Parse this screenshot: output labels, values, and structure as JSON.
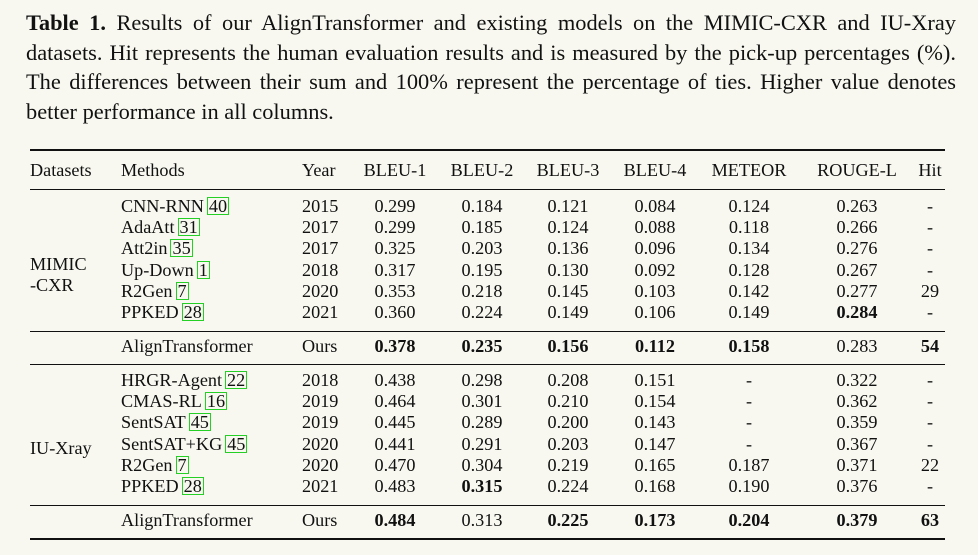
{
  "caption": {
    "label": "Table 1.",
    "text": "Results of our AlignTransformer and existing models on the MIMIC-CXR and IU-Xray datasets. Hit represents the human evaluation results and is measured by the pick-up percentages (%). The differences between their sum and 100% represent the percentage of ties. Higher value denotes better performance in all columns."
  },
  "headers": [
    "Datasets",
    "Methods",
    "Year",
    "BLEU-1",
    "BLEU-2",
    "BLEU-3",
    "BLEU-4",
    "METEOR",
    "ROUGE-L",
    "Hit"
  ],
  "groups": [
    {
      "dataset": [
        "MIMIC",
        "-CXR"
      ],
      "rows": [
        {
          "method": "CNN-RNN",
          "ref": "40",
          "year": "2015",
          "vals": [
            "0.299",
            "0.184",
            "0.121",
            "0.084",
            "0.124",
            "0.263",
            "-"
          ],
          "bold": []
        },
        {
          "method": "AdaAtt",
          "ref": "31",
          "year": "2017",
          "vals": [
            "0.299",
            "0.185",
            "0.124",
            "0.088",
            "0.118",
            "0.266",
            "-"
          ],
          "bold": []
        },
        {
          "method": "Att2in",
          "ref": "35",
          "year": "2017",
          "vals": [
            "0.325",
            "0.203",
            "0.136",
            "0.096",
            "0.134",
            "0.276",
            "-"
          ],
          "bold": []
        },
        {
          "method": "Up-Down",
          "ref": "1",
          "year": "2018",
          "vals": [
            "0.317",
            "0.195",
            "0.130",
            "0.092",
            "0.128",
            "0.267",
            "-"
          ],
          "bold": []
        },
        {
          "method": "R2Gen",
          "ref": "7",
          "year": "2020",
          "vals": [
            "0.353",
            "0.218",
            "0.145",
            "0.103",
            "0.142",
            "0.277",
            "29"
          ],
          "bold": []
        },
        {
          "method": "PPKED",
          "ref": "28",
          "year": "2021",
          "vals": [
            "0.360",
            "0.224",
            "0.149",
            "0.106",
            "0.149",
            "0.284",
            "-"
          ],
          "bold": [
            5
          ]
        }
      ],
      "ours": {
        "method": "AlignTransformer",
        "year": "Ours",
        "vals": [
          "0.378",
          "0.235",
          "0.156",
          "0.112",
          "0.158",
          "0.283",
          "54"
        ],
        "bold": [
          0,
          1,
          2,
          3,
          4,
          6
        ]
      }
    },
    {
      "dataset": [
        "IU-Xray"
      ],
      "rows": [
        {
          "method": "HRGR-Agent",
          "ref": "22",
          "year": "2018",
          "vals": [
            "0.438",
            "0.298",
            "0.208",
            "0.151",
            "-",
            "0.322",
            "-"
          ],
          "bold": []
        },
        {
          "method": "CMAS-RL",
          "ref": "16",
          "year": "2019",
          "vals": [
            "0.464",
            "0.301",
            "0.210",
            "0.154",
            "-",
            "0.362",
            "-"
          ],
          "bold": []
        },
        {
          "method": "SentSAT",
          "ref": "45",
          "year": "2019",
          "vals": [
            "0.445",
            "0.289",
            "0.200",
            "0.143",
            "-",
            "0.359",
            "-"
          ],
          "bold": []
        },
        {
          "method": "SentSAT+KG",
          "ref": "45",
          "year": "2020",
          "vals": [
            "0.441",
            "0.291",
            "0.203",
            "0.147",
            "-",
            "0.367",
            "-"
          ],
          "bold": []
        },
        {
          "method": "R2Gen",
          "ref": "7",
          "year": "2020",
          "vals": [
            "0.470",
            "0.304",
            "0.219",
            "0.165",
            "0.187",
            "0.371",
            "22"
          ],
          "bold": []
        },
        {
          "method": "PPKED",
          "ref": "28",
          "year": "2021",
          "vals": [
            "0.483",
            "0.315",
            "0.224",
            "0.168",
            "0.190",
            "0.376",
            "-"
          ],
          "bold": [
            1
          ]
        }
      ],
      "ours": {
        "method": "AlignTransformer",
        "year": "Ours",
        "vals": [
          "0.484",
          "0.313",
          "0.225",
          "0.173",
          "0.204",
          "0.379",
          "63"
        ],
        "bold": [
          0,
          2,
          3,
          4,
          5,
          6
        ]
      }
    }
  ]
}
